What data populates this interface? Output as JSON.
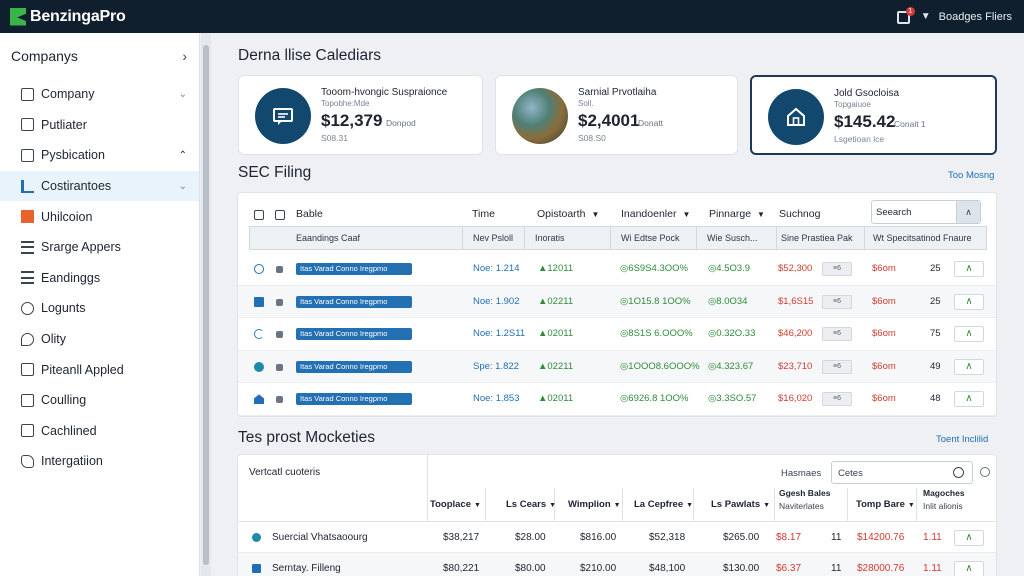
{
  "app": {
    "brand": "BenzingaPro",
    "notification_count": "1",
    "user_label": "Boadges Fliers"
  },
  "sidebar": {
    "header": "Companys",
    "items": [
      {
        "label": "Company",
        "icon": "document-icon",
        "chevron": "⌄"
      },
      {
        "label": "Putliater",
        "icon": "document-icon",
        "chevron": ""
      },
      {
        "label": "Pysbication",
        "icon": "box-icon",
        "chevron": "⌃"
      },
      {
        "label": "Costirantoes",
        "icon": "bar-chart-icon",
        "chevron": "⌄"
      },
      {
        "label": "Uhilcoion",
        "icon": "orange-square-icon",
        "chevron": ""
      },
      {
        "label": "Srarge Appers",
        "icon": "grid-icon",
        "chevron": ""
      },
      {
        "label": "Eandinggs",
        "icon": "list-icon",
        "chevron": ""
      },
      {
        "label": "Logunts",
        "icon": "circle-icon",
        "chevron": ""
      },
      {
        "label": "Olity",
        "icon": "key-icon",
        "chevron": ""
      },
      {
        "label": "Piteanll Appled",
        "icon": "document-icon",
        "chevron": ""
      },
      {
        "label": "Coulling",
        "icon": "document-icon",
        "chevron": ""
      },
      {
        "label": "Cachlined",
        "icon": "box-icon",
        "chevron": ""
      },
      {
        "label": "Intergatiion",
        "icon": "puzzle-icon",
        "chevron": ""
      }
    ]
  },
  "calendar": {
    "title": "Derna llise Calediars",
    "cards": [
      {
        "name": "Tooom-hvongic Suspraionce",
        "sub": "Topobhe:Mde",
        "price": "$12,379",
        "tag": "Donpod",
        "foot": "S08.31",
        "icon": "message-icon"
      },
      {
        "name": "Sarnial Prvotlaiha",
        "sub": "Soll.",
        "price": "$2,4001",
        "tag": "Donatt",
        "foot": "S08.S0",
        "icon": "photo-avatar"
      },
      {
        "name": "Jold Gsocloisa",
        "sub": "Topgaiuoe",
        "price": "$145.42",
        "tag": "Conait 1",
        "foot": "Lsgetioan lce",
        "icon": "home-icon"
      }
    ]
  },
  "sec_filing": {
    "title": "SEC Filing",
    "link": "Too Mosng",
    "columns": [
      "Bable",
      "Time",
      "Opistoarth",
      "Inandoenler",
      "Pinnarge",
      "Suchnog"
    ],
    "search_label": "Seearch",
    "subheaders": [
      "Eaandings Caaf",
      "Nev Psloll",
      "Inoratis",
      "Wi Edtse Pock",
      "Wie Susch...",
      "Sine Prastiea Pak",
      "Wt Specitsatinod Fnaure"
    ],
    "rows": [
      {
        "tag": "Itas Varad Conno Iregpmo",
        "time": "Noe: 1.214",
        "opt": "▲12011",
        "iv": "◎6S9S4.3OO%",
        "pm": "◎4.5O3.9",
        "sd": "$52,300",
        "btn": "≡6",
        "red2": "$6om",
        "num": "25",
        "up": "∧",
        "icon": "ring-icon"
      },
      {
        "tag": "Itas Varad Conno Iregpmo",
        "time": "Noe: 1.902",
        "opt": "▲02211",
        "iv": "◎1O15.8 1OO%",
        "pm": "◎8.0O34",
        "sd": "$1,6S15",
        "btn": "≡6",
        "red2": "$6om",
        "num": "25",
        "up": "∧",
        "icon": "grid-icon"
      },
      {
        "tag": "Itas Varad Conno Iregpmo",
        "time": "Noe: 1.2S11",
        "opt": "▲02011",
        "iv": "◎8S1S 6.OOO%",
        "pm": "◎0.32O.33",
        "sd": "$46,200",
        "btn": "≡6",
        "red2": "$6om",
        "num": "75",
        "up": "∧",
        "icon": "half-circle-icon"
      },
      {
        "tag": "Itas Varad Conno Iregpmo",
        "time": "Spe: 1.822",
        "opt": "▲02211",
        "iv": "◎1OOO8.6OOO%",
        "pm": "◎4.323.67",
        "sd": "$23,710",
        "btn": "≡6",
        "red2": "$6om",
        "num": "49",
        "up": "∧",
        "icon": "dot-icon"
      },
      {
        "tag": "Itas Varad Conno Iregpmo",
        "time": "Noe: 1.853",
        "opt": "▲02011",
        "iv": "◎6926.8 1OO%",
        "pm": "◎3.3SO.57",
        "sd": "$16,020",
        "btn": "≡6",
        "red2": "$6om",
        "num": "48",
        "up": "∧",
        "icon": "house-icon"
      }
    ]
  },
  "movers": {
    "title": "Tes prost Mocketies",
    "link": "Toent Inclilid",
    "filter_label": "Vertcatl cuoteris",
    "sort_label": "Hasmaes",
    "input_value": "Cetes",
    "columns": [
      "Tooplace",
      "Ls Cears",
      "Wimplion",
      "La Cepfree",
      "Ls Pawlats",
      "Tomp Bare"
    ],
    "col_gosh": {
      "main": "Ggesh Bales",
      "sub": "Naviterlates"
    },
    "col_mage": {
      "main": "Magoches",
      "sub": "Inlit alionis"
    },
    "rows": [
      {
        "name": "Suercial Vhatsaoourg",
        "v1": "$38,217",
        "v2": "$28.00",
        "v3": "$816.00",
        "v4": "$52,318",
        "v5": "$265.00",
        "v6": "$8.17",
        "v7": "11",
        "v8": "$14200.76",
        "v9": "1.11",
        "up": "∧",
        "icon": "round-icon"
      },
      {
        "name": "Serntay. Filleng",
        "v1": "$80,221",
        "v2": "$80.00",
        "v3": "$210.00",
        "v4": "$48,100",
        "v5": "$130.00",
        "v6": "$6.37",
        "v7": "11",
        "v8": "$28000.76",
        "v9": "1.11",
        "up": "∧",
        "icon": "square-icon"
      }
    ]
  }
}
